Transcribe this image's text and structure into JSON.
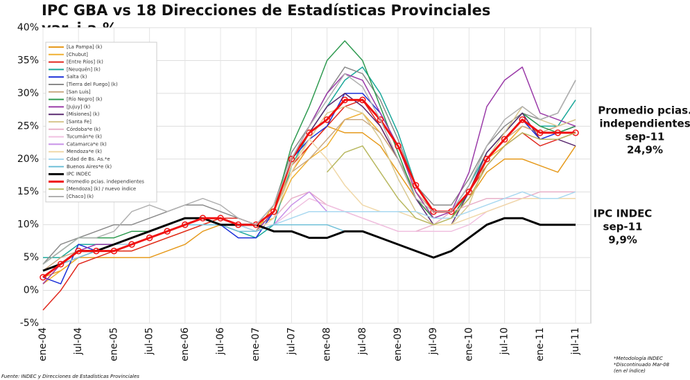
{
  "chart_data": {
    "type": "line",
    "title": "IPC GBA vs 18 Direcciones de Estadísticas Provinciales",
    "subtitle": "var. i.a.%",
    "categories": [
      "ene-04",
      null,
      "jul-04",
      null,
      "ene-05",
      null,
      "jul-05",
      null,
      "ene-06",
      null,
      "jul-06",
      null,
      "ene-07",
      null,
      "jul-07",
      null,
      "ene-08",
      null,
      "jul-08",
      null,
      "ene-09",
      null,
      "jul-09",
      null,
      "ene-10",
      null,
      "jul-10",
      null,
      "ene-11",
      null,
      "jul-11"
    ],
    "ylim": [
      -5,
      40
    ],
    "yticks": [
      {
        "value": -5,
        "label": "-5%"
      },
      {
        "value": 0,
        "label": "0%"
      },
      {
        "value": 5,
        "label": "5%"
      },
      {
        "value": 10,
        "label": "10%"
      },
      {
        "value": 15,
        "label": "15%"
      },
      {
        "value": 20,
        "label": "20%"
      },
      {
        "value": 25,
        "label": "25%"
      },
      {
        "value": 30,
        "label": "30%"
      },
      {
        "value": 35,
        "label": "35%"
      },
      {
        "value": 40,
        "label": "40%"
      }
    ],
    "grid": true,
    "series": [
      {
        "name": "[La Pampa] (k)",
        "color": "#e69a1c",
        "values": [
          2,
          3,
          5,
          5,
          5,
          5,
          5,
          6,
          7,
          9,
          10,
          9,
          9,
          13,
          18,
          22,
          25,
          24,
          24,
          22,
          18,
          14,
          11,
          11,
          14,
          18,
          20,
          20,
          19,
          18,
          22
        ]
      },
      {
        "name": "[Chubut]",
        "color": "#f0b030",
        "values": [
          1,
          3,
          5,
          6,
          6,
          6,
          7,
          8,
          9,
          10,
          11,
          10,
          10,
          11,
          17,
          20,
          22,
          26,
          27,
          24,
          20,
          15,
          11,
          11,
          15,
          20,
          22,
          25,
          24,
          24,
          25
        ]
      },
      {
        "name": "[Entre Ríos] (k)",
        "color": "#e0281e",
        "values": [
          -3,
          0,
          4,
          5,
          6,
          6,
          7,
          8,
          9,
          10,
          11,
          11,
          10,
          12,
          19,
          22,
          25,
          28,
          29,
          25,
          20,
          14,
          11,
          11,
          15,
          19,
          22,
          24,
          22,
          23,
          24
        ]
      },
      {
        "name": "[Neuquén] (k)",
        "color": "#1aa89a",
        "values": [
          5,
          5,
          7,
          7,
          7,
          7,
          8,
          9,
          10,
          11,
          10,
          9,
          8,
          10,
          19,
          24,
          28,
          32,
          34,
          30,
          24,
          16,
          12,
          12,
          16,
          21,
          24,
          27,
          25,
          25,
          29
        ]
      },
      {
        "name": "Salta (k)",
        "color": "#1a2fd8",
        "values": [
          2,
          1,
          7,
          6,
          7,
          7,
          8,
          9,
          10,
          11,
          10,
          8,
          8,
          12,
          20,
          23,
          25,
          30,
          30,
          27,
          22,
          16,
          12,
          12,
          15,
          20,
          23,
          26,
          23,
          24,
          25
        ]
      },
      {
        "name": "[Tierra del Fuego] (k)",
        "color": "#8a8a8a",
        "values": [
          4,
          7,
          8,
          9,
          10,
          10,
          11,
          12,
          13,
          13,
          12,
          11,
          10,
          13,
          21,
          25,
          30,
          34,
          33,
          29,
          23,
          16,
          13,
          13,
          17,
          22,
          25,
          27,
          26,
          27,
          32
        ]
      },
      {
        "name": "[San Luis]",
        "color": "#c9a882",
        "values": [
          3,
          5,
          6,
          6,
          7,
          7,
          8,
          9,
          10,
          11,
          11,
          10,
          10,
          12,
          18,
          20,
          23,
          26,
          26,
          24,
          20,
          15,
          12,
          12,
          15,
          20,
          23,
          25,
          24,
          25,
          26
        ]
      },
      {
        "name": "[Río Negro] (k)",
        "color": "#2e9a50",
        "values": [
          4,
          6,
          8,
          8,
          8,
          9,
          9,
          10,
          11,
          11,
          11,
          10,
          9,
          12,
          22,
          28,
          35,
          38,
          35,
          28,
          21,
          14,
          11,
          11,
          15,
          21,
          24,
          27,
          25,
          24,
          25
        ]
      },
      {
        "name": "[Jujuy] (k)",
        "color": "#9a3aa8",
        "values": [
          1,
          4,
          6,
          7,
          7,
          8,
          9,
          10,
          11,
          11,
          11,
          10,
          9,
          12,
          20,
          25,
          30,
          33,
          32,
          27,
          22,
          15,
          11,
          12,
          18,
          28,
          32,
          34,
          27,
          26,
          25
        ]
      },
      {
        "name": "[Misiones] (k)",
        "color": "#5a2a70",
        "values": [
          2,
          4,
          5,
          6,
          6,
          7,
          8,
          9,
          10,
          10,
          10,
          10,
          10,
          12,
          20,
          24,
          28,
          30,
          28,
          25,
          20,
          14,
          10,
          10,
          15,
          21,
          24,
          27,
          23,
          23,
          22
        ]
      },
      {
        "name": "[Santa Fe]",
        "color": "#d8c890",
        "values": [
          2,
          4,
          5,
          6,
          6,
          7,
          8,
          9,
          10,
          11,
          11,
          10,
          10,
          12,
          19,
          23,
          27,
          28,
          27,
          23,
          17,
          12,
          10,
          10,
          13,
          20,
          24,
          28,
          26,
          25,
          26
        ]
      },
      {
        "name": "Córdoba*e (k)",
        "color": "#e8b0c8",
        "values": [
          2,
          4,
          5,
          6,
          7,
          7,
          8,
          9,
          10,
          11,
          11,
          10,
          9,
          11,
          14,
          15,
          13,
          12,
          11,
          10,
          9,
          9,
          10,
          12,
          13,
          14,
          14,
          14,
          15,
          15,
          15
        ]
      },
      {
        "name": "Tucumán*e (k)",
        "color": "#f0c0e0",
        "values": [
          2,
          4,
          5,
          6,
          7,
          7,
          8,
          9,
          10,
          11,
          11,
          10,
          9,
          10,
          12,
          14,
          13,
          12,
          11,
          10,
          9,
          9,
          9,
          9,
          10,
          12,
          13,
          14,
          14,
          14,
          14
        ]
      },
      {
        "name": "Catamarca*e (k)",
        "color": "#c890e8",
        "values": [
          2,
          4,
          5,
          6,
          6,
          7,
          8,
          9,
          10,
          10,
          10,
          10,
          9,
          10,
          13,
          15,
          12,
          null,
          null,
          null,
          null,
          null,
          null,
          null,
          null,
          null,
          null,
          null,
          null,
          null,
          null
        ]
      },
      {
        "name": "Mendoza*e (k)",
        "color": "#f0d8a8",
        "values": [
          3,
          4,
          5,
          6,
          7,
          7,
          8,
          9,
          10,
          11,
          11,
          10,
          9,
          11,
          18,
          23,
          20,
          16,
          13,
          12,
          12,
          11,
          10,
          10,
          11,
          12,
          13,
          14,
          14,
          14,
          14
        ]
      },
      {
        "name": "Cdad de Bs. As.*e",
        "color": "#a8d8f0",
        "values": [
          3,
          4,
          6,
          6,
          7,
          7,
          8,
          9,
          10,
          10,
          10,
          10,
          9,
          10,
          11,
          12,
          12,
          12,
          12,
          12,
          12,
          12,
          11,
          11,
          12,
          13,
          14,
          15,
          14,
          14,
          15
        ]
      },
      {
        "name": "Buenos Aires*e (k)",
        "color": "#70c0d8",
        "values": [
          2,
          4,
          5,
          6,
          6,
          7,
          8,
          9,
          10,
          10,
          10,
          9,
          9,
          10,
          10,
          10,
          10,
          9,
          9,
          null,
          null,
          null,
          null,
          null,
          null,
          null,
          null,
          null,
          null,
          null,
          null
        ]
      },
      {
        "name": "IPC INDEC",
        "color": "#000000",
        "values": [
          3,
          4,
          6,
          6,
          7,
          8,
          9,
          10,
          11,
          11,
          10,
          10,
          10,
          9,
          9,
          8,
          8,
          9,
          9,
          8,
          7,
          6,
          5,
          6,
          8,
          10,
          11,
          11,
          10,
          10,
          10
        ]
      },
      {
        "name": "Promedio pcias. independientes",
        "color": "#f01010",
        "values": [
          2,
          4,
          6,
          6,
          6,
          7,
          8,
          9,
          10,
          11,
          11,
          10,
          10,
          12,
          20,
          24,
          26,
          29,
          29,
          26,
          22,
          16,
          12,
          12,
          15,
          20,
          23,
          26,
          24,
          24,
          24
        ]
      },
      {
        "name": "[Mendoza] (k) / nuevo índice",
        "color": "#b8b860",
        "values": [
          null,
          null,
          null,
          null,
          null,
          null,
          null,
          null,
          null,
          null,
          null,
          null,
          null,
          null,
          null,
          null,
          18,
          21,
          22,
          18,
          14,
          11,
          10,
          11,
          14,
          19,
          22,
          24,
          23,
          23,
          24
        ]
      },
      {
        "name": "[Chaco] (k)",
        "color": "#b0b0b0",
        "values": [
          4,
          6,
          8,
          8,
          9,
          12,
          13,
          12,
          13,
          14,
          13,
          11,
          10,
          13,
          20,
          25,
          29,
          33,
          31,
          26,
          20,
          14,
          12,
          12,
          16,
          22,
          26,
          28,
          26,
          27,
          32
        ]
      }
    ],
    "annotations": [
      {
        "lines": [
          "Promedio pcias.",
          "independientes",
          "sep-11",
          "24,9%"
        ]
      },
      {
        "lines": [
          "IPC INDEC",
          "sep-11",
          "9,9%"
        ]
      }
    ],
    "source": "Fuente: INDEC y Direcciones de Estadísticas Provinciales",
    "notes": [
      "*Metodología INDEC",
      "*Discontinuado Mar-08",
      "(en el índice)"
    ]
  }
}
